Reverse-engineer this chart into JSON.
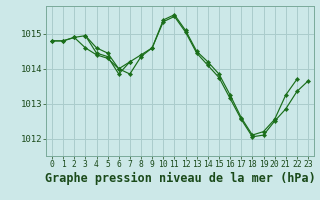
{
  "background_color": "#cce8e8",
  "grid_color": "#aacccc",
  "line_color": "#1a6e1a",
  "title": "Graphe pression niveau de la mer (hPa)",
  "xlim": [
    -0.5,
    23.5
  ],
  "ylim": [
    1011.5,
    1015.8
  ],
  "yticks": [
    1012,
    1013,
    1014,
    1015
  ],
  "xticks": [
    0,
    1,
    2,
    3,
    4,
    5,
    6,
    7,
    8,
    9,
    10,
    11,
    12,
    13,
    14,
    15,
    16,
    17,
    18,
    19,
    20,
    21,
    22,
    23
  ],
  "series": [
    {
      "x": [
        0,
        1,
        2,
        3,
        4,
        5,
        6,
        7,
        8,
        9,
        10,
        11,
        12,
        13,
        14,
        15,
        16,
        17,
        18,
        19,
        20,
        21,
        22
      ],
      "y": [
        1014.8,
        1014.8,
        1014.9,
        1014.95,
        1014.45,
        1014.35,
        1013.85,
        1014.2,
        1014.4,
        1014.6,
        1015.4,
        1015.55,
        1015.1,
        1014.5,
        1014.2,
        1013.85,
        1013.25,
        1012.6,
        1012.1,
        1012.2,
        1012.55,
        1013.25,
        1013.7
      ]
    },
    {
      "x": [
        0,
        1,
        2,
        3,
        4,
        5,
        6,
        7
      ],
      "y": [
        1014.8,
        1014.8,
        1014.9,
        1014.6,
        1014.4,
        1014.3,
        1014.0,
        1014.2
      ]
    },
    {
      "x": [
        3,
        4,
        5,
        6,
        7,
        8,
        9,
        10,
        11,
        12,
        13,
        14,
        15,
        16,
        17,
        18,
        19,
        20,
        21,
        22,
        23
      ],
      "y": [
        1014.95,
        1014.6,
        1014.45,
        1014.0,
        1013.85,
        1014.35,
        1014.6,
        1015.35,
        1015.5,
        1015.05,
        1014.45,
        1014.1,
        1013.75,
        1013.15,
        1012.55,
        1012.05,
        1012.1,
        1012.5,
        1012.85,
        1013.35,
        1013.65
      ]
    }
  ],
  "title_fontsize": 8.5,
  "tick_fontsize": 6.5
}
